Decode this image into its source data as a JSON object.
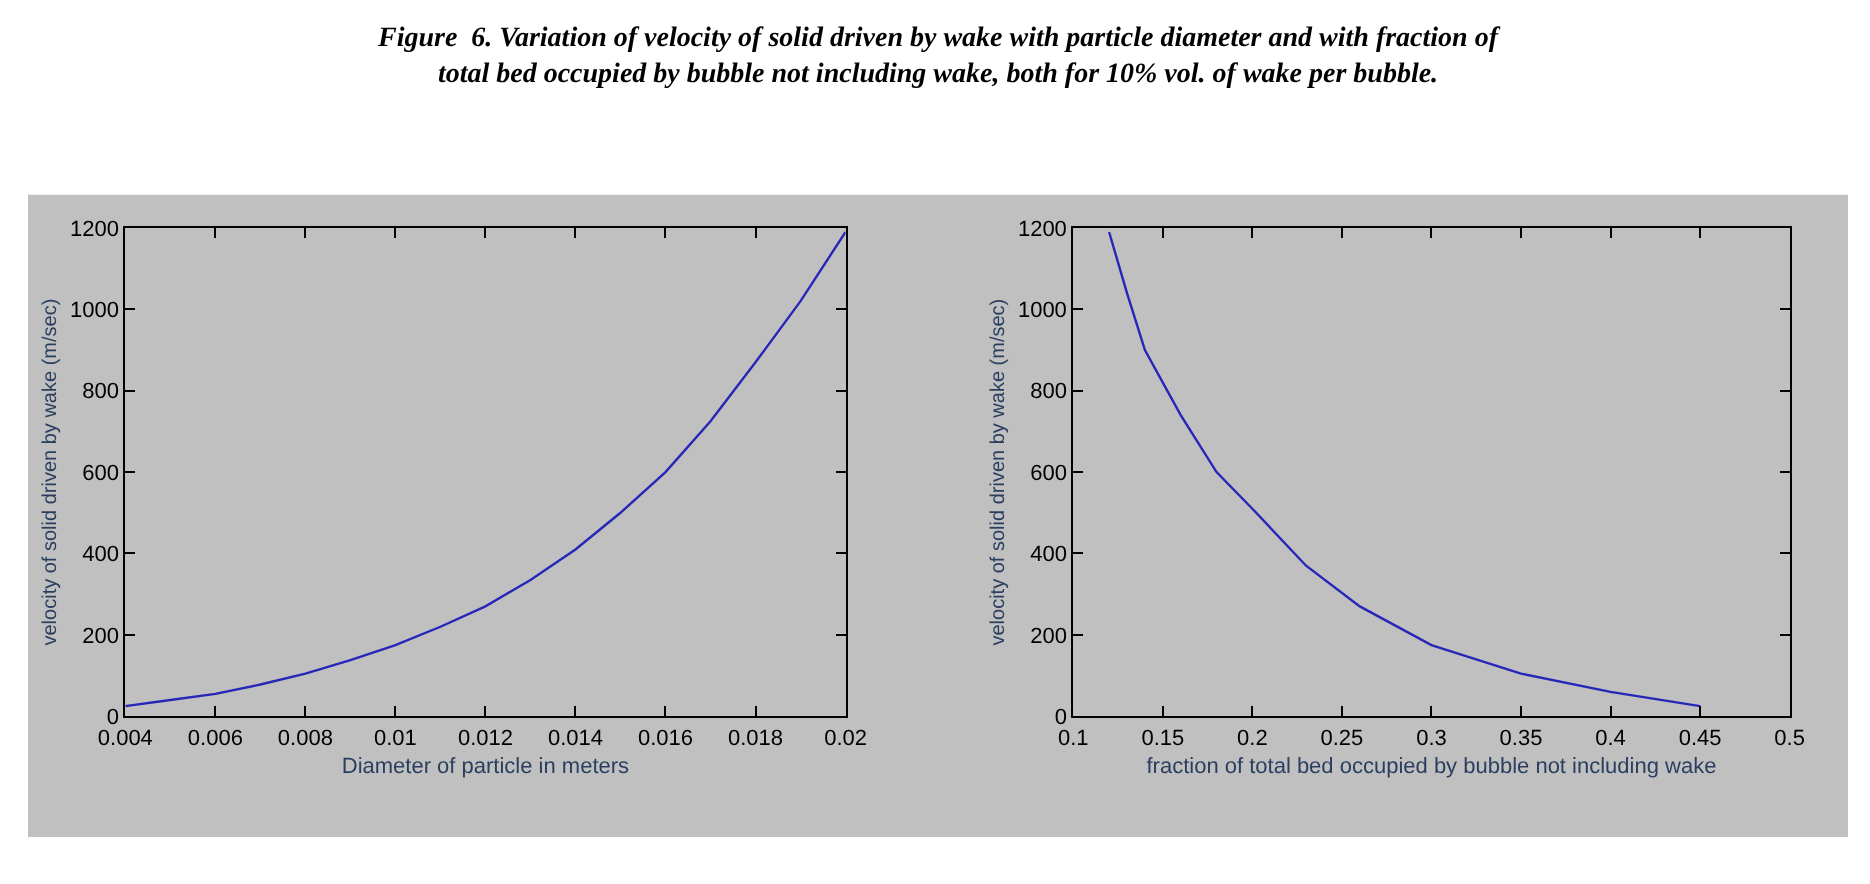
{
  "chart_data": [
    {
      "type": "line",
      "title": "Figure  6. Variation of velocity of solid driven by wake with particle diameter and with fraction of total bed occupied by bubble not including wake, both for 10% vol. of wake per bubble.",
      "xlabel": "Diameter of particle in meters",
      "ylabel": "velocity of solid driven by wake (m/sec)",
      "color": "#2626b8",
      "x": [
        0.004,
        0.005,
        0.006,
        0.007,
        0.008,
        0.009,
        0.01,
        0.011,
        0.012,
        0.013,
        0.014,
        0.015,
        0.016,
        0.017,
        0.018,
        0.019,
        0.02
      ],
      "values": [
        25,
        40,
        55,
        78,
        105,
        138,
        175,
        220,
        270,
        335,
        410,
        500,
        600,
        725,
        870,
        1020,
        1190
      ],
      "xlim": [
        0.004,
        0.02
      ],
      "ylim": [
        0,
        1200
      ],
      "xticks": [
        0.004,
        0.006,
        0.008,
        0.01,
        0.012,
        0.014,
        0.016,
        0.018,
        0.02
      ],
      "yticks": [
        0,
        200,
        400,
        600,
        800,
        1000,
        1200
      ]
    },
    {
      "type": "line",
      "xlabel": "fraction of total bed occupied by bubble not including wake",
      "ylabel": "velocity of solid driven by wake (m/sec)",
      "color": "#2626b8",
      "x": [
        0.12,
        0.13,
        0.14,
        0.15,
        0.16,
        0.18,
        0.2,
        0.23,
        0.26,
        0.3,
        0.35,
        0.4,
        0.45
      ],
      "values": [
        1190,
        1040,
        900,
        820,
        740,
        600,
        510,
        370,
        270,
        175,
        105,
        60,
        25
      ],
      "xlim": [
        0.1,
        0.5
      ],
      "ylim": [
        0,
        1200
      ],
      "xticks": [
        0.1,
        0.15,
        0.2,
        0.25,
        0.3,
        0.35,
        0.4,
        0.45,
        0.5
      ],
      "yticks": [
        0,
        200,
        400,
        600,
        800,
        1000,
        1200
      ]
    }
  ]
}
